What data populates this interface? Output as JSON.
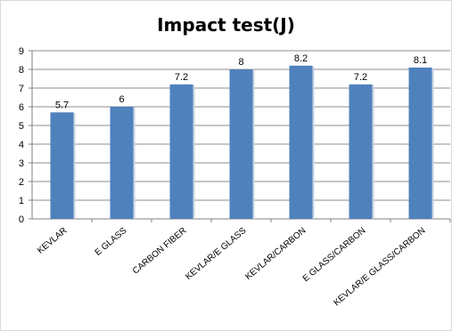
{
  "chart_data": {
    "type": "bar",
    "title": "Impact test(J)",
    "categories": [
      "KEVLAR",
      "E GLASS",
      "CARBON FIBER",
      "KEVLAR/E GLASS",
      "KEVLAR/CARBON",
      "E GLASS/CARBON",
      "KEVLAR/E GLASS/CARBON"
    ],
    "values": [
      5.7,
      6,
      7.2,
      8,
      8.2,
      7.2,
      8.1
    ],
    "data_labels": [
      "5.7",
      "6",
      "7.2",
      "8",
      "8.2",
      "7.2",
      "8.1"
    ],
    "yticks": [
      "0",
      "1",
      "2",
      "3",
      "4",
      "5",
      "6",
      "7",
      "8",
      "9"
    ],
    "ylim": [
      0,
      9
    ],
    "xlabel": "",
    "ylabel": "",
    "grid": true,
    "legend": "none",
    "bar_color": "#4f81bd"
  }
}
